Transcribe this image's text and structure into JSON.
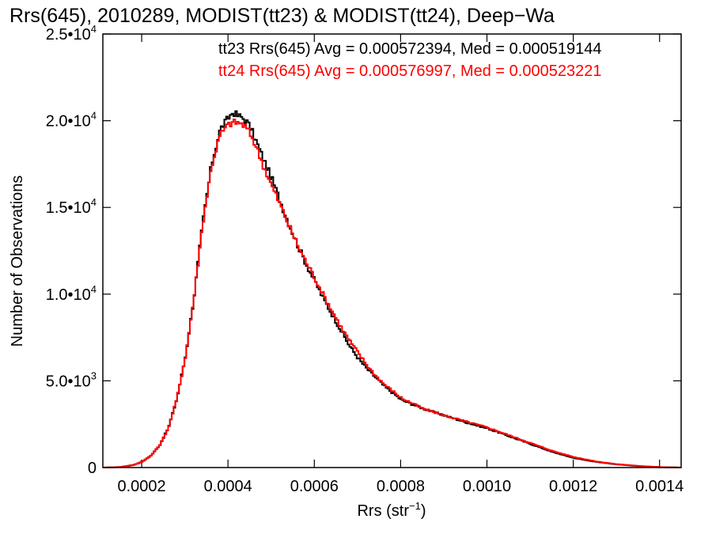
{
  "chart_data": {
    "type": "line",
    "title": "Rrs(645), 2010289, MODIST(tt23) & MODIST(tt24), Deep−Wa",
    "xlabel": "Rrs (str",
    "xlabel_exp": "−1",
    "xlabel_close": ")",
    "ylabel": "Number of Observations",
    "xlim": [
      0.00011,
      0.00145
    ],
    "ylim": [
      0,
      25000
    ],
    "x_ticks": [
      {
        "value": 0.0002,
        "label": "0.0002"
      },
      {
        "value": 0.0004,
        "label": "0.0004"
      },
      {
        "value": 0.0006,
        "label": "0.0006"
      },
      {
        "value": 0.0008,
        "label": "0.0008"
      },
      {
        "value": 0.001,
        "label": "0.0010"
      },
      {
        "value": 0.0012,
        "label": "0.0012"
      },
      {
        "value": 0.0014,
        "label": "0.0014"
      }
    ],
    "y_ticks": [
      {
        "value": 0,
        "label": "0",
        "exp": ""
      },
      {
        "value": 5000,
        "label": "5.0•10",
        "exp": "3"
      },
      {
        "value": 10000,
        "label": "1.0•10",
        "exp": "4"
      },
      {
        "value": 15000,
        "label": "1.5•10",
        "exp": "4"
      },
      {
        "value": 20000,
        "label": "2.0•10",
        "exp": "4"
      },
      {
        "value": 25000,
        "label": "2.5•10",
        "exp": "4"
      }
    ],
    "legend_position": "top-right",
    "series": [
      {
        "name": "tt23",
        "legend": "tt23 Rrs(645) Avg = 0.000572394, Med = 0.000519144",
        "color": "#000000",
        "x": [
          0.00011,
          0.00015,
          0.00018,
          0.0002,
          0.00022,
          0.00024,
          0.00026,
          0.00028,
          0.0003,
          0.00032,
          0.00034,
          0.00036,
          0.00038,
          0.0004,
          0.00041,
          0.00042,
          0.00043,
          0.00044,
          0.00045,
          0.00046,
          0.00048,
          0.0005,
          0.00052,
          0.00054,
          0.00056,
          0.00058,
          0.0006,
          0.00062,
          0.00064,
          0.00066,
          0.00068,
          0.0007,
          0.00072,
          0.00074,
          0.00076,
          0.00078,
          0.0008,
          0.00085,
          0.0009,
          0.00095,
          0.001,
          0.00105,
          0.0011,
          0.00115,
          0.0012,
          0.00125,
          0.0013,
          0.00135,
          0.0014,
          0.00145
        ],
        "y": [
          0,
          30,
          150,
          350,
          700,
          1300,
          2300,
          4000,
          6500,
          10000,
          14200,
          17500,
          19500,
          20200,
          20500,
          20300,
          20200,
          20000,
          19600,
          19000,
          17800,
          16600,
          15300,
          14000,
          12800,
          11700,
          10700,
          9700,
          8800,
          7900,
          7000,
          6300,
          5700,
          5200,
          4700,
          4300,
          3900,
          3400,
          3000,
          2600,
          2250,
          1800,
          1350,
          900,
          550,
          330,
          180,
          80,
          20,
          0
        ]
      },
      {
        "name": "tt24",
        "legend": "tt24 Rrs(645) Avg = 0.000576997, Med = 0.000523221",
        "color": "#ff0000",
        "x": [
          0.00011,
          0.00015,
          0.00018,
          0.0002,
          0.00022,
          0.00024,
          0.00026,
          0.00028,
          0.0003,
          0.00032,
          0.00034,
          0.00036,
          0.00038,
          0.0004,
          0.00041,
          0.00042,
          0.00043,
          0.00044,
          0.00045,
          0.00046,
          0.00048,
          0.0005,
          0.00052,
          0.00054,
          0.00056,
          0.00058,
          0.0006,
          0.00062,
          0.00064,
          0.00066,
          0.00068,
          0.0007,
          0.00072,
          0.00074,
          0.00076,
          0.00078,
          0.0008,
          0.00085,
          0.0009,
          0.00095,
          0.001,
          0.00105,
          0.0011,
          0.00115,
          0.0012,
          0.00125,
          0.0013,
          0.00135,
          0.0014,
          0.00145
        ],
        "y": [
          0,
          30,
          150,
          350,
          700,
          1300,
          2300,
          4000,
          6500,
          10000,
          14200,
          17400,
          19200,
          19800,
          19900,
          19900,
          19800,
          19600,
          19200,
          18700,
          17400,
          16200,
          15100,
          13900,
          12800,
          11800,
          10900,
          9900,
          9000,
          8100,
          7300,
          6600,
          5900,
          5300,
          4800,
          4400,
          4000,
          3400,
          3000,
          2650,
          2300,
          1850,
          1400,
          950,
          600,
          350,
          190,
          90,
          25,
          0
        ]
      }
    ]
  }
}
